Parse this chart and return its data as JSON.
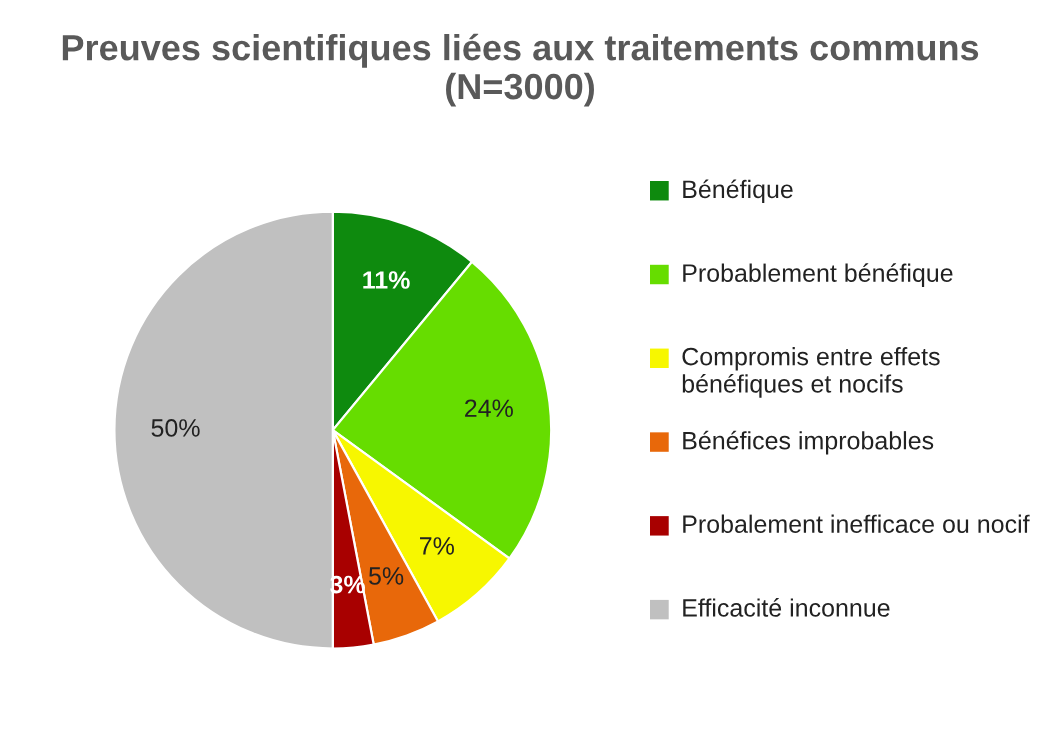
{
  "chart_data": {
    "type": "pie",
    "title": "Preuves scientifiques liées aux traitements communs (N=3000)",
    "categories": [
      "Bénéfique",
      "Probablement bénéfique",
      "Compromis entre effets bénéfiques et nocifs",
      "Bénéfices improbables",
      "Probalement inefficace ou nocif",
      "Efficacité inconnue"
    ],
    "values": [
      11,
      24,
      7,
      5,
      3,
      50
    ],
    "value_labels": [
      "11%",
      "24%",
      "7%",
      "5%",
      "3%",
      "50%"
    ],
    "colors": [
      "#0e8a0e",
      "#66dd00",
      "#f7f700",
      "#e8680a",
      "#a80000",
      "#c0c0c0"
    ],
    "legend": "right"
  }
}
